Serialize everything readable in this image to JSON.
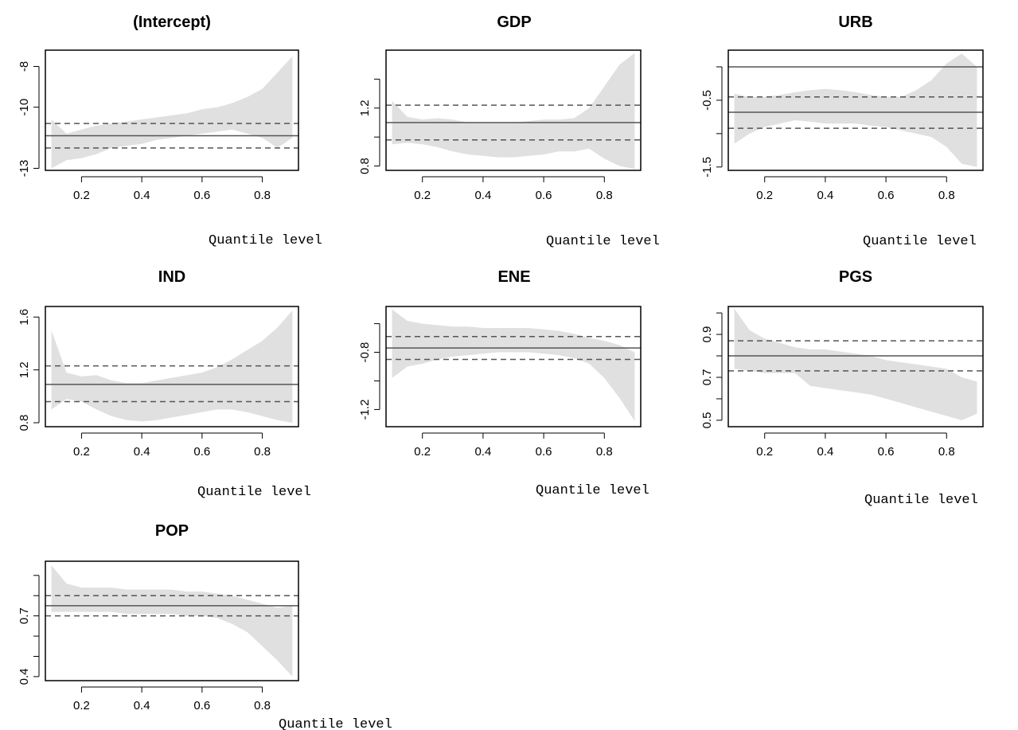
{
  "colors": {
    "band": "#e0e0e0",
    "line": "#555555",
    "frame": "#000000"
  },
  "chart_data": [
    {
      "type": "area",
      "title": "(Intercept)",
      "xlabel": "Quantile level",
      "xlim": [
        0.08,
        0.92
      ],
      "ylim": [
        -13.1,
        -7.2
      ],
      "xticks": [
        0.2,
        0.4,
        0.6,
        0.8
      ],
      "xtick_labels": [
        "0.2",
        "0.4",
        "0.6",
        "0.8"
      ],
      "yticks": [
        -13,
        -10,
        -8
      ],
      "ytick_labels": [
        "-13",
        "-10",
        "-8"
      ],
      "extra_yticks": [],
      "ols_estimate": -11.4,
      "ols_ci": [
        -12.0,
        -10.8
      ],
      "x": [
        0.1,
        0.15,
        0.2,
        0.25,
        0.3,
        0.35,
        0.4,
        0.45,
        0.5,
        0.55,
        0.6,
        0.65,
        0.7,
        0.75,
        0.8,
        0.85,
        0.9
      ],
      "band_upper": [
        -10.6,
        -11.3,
        -11.1,
        -10.9,
        -10.8,
        -10.7,
        -10.6,
        -10.5,
        -10.4,
        -10.3,
        -10.1,
        -10.0,
        -9.8,
        -9.5,
        -9.1,
        -8.3,
        -7.5
      ],
      "band_lower": [
        -13.0,
        -12.6,
        -12.5,
        -12.3,
        -12.0,
        -11.9,
        -11.8,
        -11.6,
        -11.5,
        -11.4,
        -11.3,
        -11.2,
        -11.1,
        -11.3,
        -11.5,
        -12.0,
        -11.5
      ]
    },
    {
      "type": "area",
      "title": "GDP",
      "xlabel": "Quantile level",
      "xlim": [
        0.08,
        0.92
      ],
      "ylim": [
        0.77,
        1.6
      ],
      "xticks": [
        0.2,
        0.4,
        0.6,
        0.8
      ],
      "xtick_labels": [
        "0.2",
        "0.4",
        "0.6",
        "0.8"
      ],
      "yticks": [
        0.8,
        1.2
      ],
      "ytick_labels": [
        "0.8",
        "1.2"
      ],
      "extra_yticks": [
        1.0,
        1.4
      ],
      "ols_estimate": 1.1,
      "ols_ci": [
        0.98,
        1.22
      ],
      "x": [
        0.1,
        0.15,
        0.2,
        0.25,
        0.3,
        0.35,
        0.4,
        0.45,
        0.5,
        0.55,
        0.6,
        0.65,
        0.7,
        0.75,
        0.8,
        0.85,
        0.9
      ],
      "band_upper": [
        1.25,
        1.14,
        1.12,
        1.13,
        1.12,
        1.1,
        1.1,
        1.1,
        1.1,
        1.11,
        1.12,
        1.12,
        1.13,
        1.2,
        1.35,
        1.5,
        1.58
      ],
      "band_lower": [
        0.95,
        0.96,
        0.95,
        0.93,
        0.9,
        0.88,
        0.87,
        0.86,
        0.86,
        0.87,
        0.88,
        0.9,
        0.9,
        0.92,
        0.85,
        0.8,
        0.78
      ]
    },
    {
      "type": "area",
      "title": "URB",
      "xlabel": "Quantile level",
      "xlim": [
        0.08,
        0.92
      ],
      "ylim": [
        -1.55,
        0.25
      ],
      "xticks": [
        0.2,
        0.4,
        0.6,
        0.8
      ],
      "xtick_labels": [
        "0.2",
        "0.4",
        "0.6",
        "0.8"
      ],
      "yticks": [
        -1.5,
        -0.5
      ],
      "ytick_labels": [
        "-1.5",
        "-0.5"
      ],
      "extra_yticks": [
        -1.0,
        0.0
      ],
      "ols_estimate": -0.68,
      "ols_ci": [
        -0.92,
        -0.45
      ],
      "x": [
        0.1,
        0.15,
        0.2,
        0.25,
        0.3,
        0.35,
        0.4,
        0.45,
        0.5,
        0.55,
        0.6,
        0.65,
        0.7,
        0.75,
        0.8,
        0.85,
        0.9
      ],
      "band_upper": [
        -0.4,
        -0.45,
        -0.45,
        -0.42,
        -0.38,
        -0.35,
        -0.33,
        -0.35,
        -0.38,
        -0.42,
        -0.45,
        -0.45,
        -0.35,
        -0.2,
        0.05,
        0.2,
        0.0
      ],
      "band_lower": [
        -1.15,
        -1.0,
        -0.9,
        -0.85,
        -0.8,
        -0.82,
        -0.85,
        -0.85,
        -0.85,
        -0.88,
        -0.9,
        -0.95,
        -1.0,
        -1.05,
        -1.2,
        -1.45,
        -1.5
      ]
    },
    {
      "type": "area",
      "title": "IND",
      "xlabel": "Quantile level",
      "xlim": [
        0.08,
        0.92
      ],
      "ylim": [
        0.77,
        1.68
      ],
      "xticks": [
        0.2,
        0.4,
        0.6,
        0.8
      ],
      "xtick_labels": [
        "0.2",
        "0.4",
        "0.6",
        "0.8"
      ],
      "yticks": [
        0.8,
        1.2,
        1.6
      ],
      "ytick_labels": [
        "0.8",
        "1.2",
        "1.6"
      ],
      "extra_yticks": [],
      "ols_estimate": 1.09,
      "ols_ci": [
        0.96,
        1.23
      ],
      "x": [
        0.1,
        0.15,
        0.2,
        0.25,
        0.3,
        0.35,
        0.4,
        0.45,
        0.5,
        0.55,
        0.6,
        0.65,
        0.7,
        0.75,
        0.8,
        0.85,
        0.9
      ],
      "band_upper": [
        1.5,
        1.18,
        1.15,
        1.16,
        1.12,
        1.1,
        1.1,
        1.12,
        1.14,
        1.16,
        1.18,
        1.22,
        1.28,
        1.35,
        1.42,
        1.52,
        1.65
      ],
      "band_lower": [
        0.9,
        0.98,
        0.96,
        0.9,
        0.85,
        0.82,
        0.81,
        0.82,
        0.84,
        0.86,
        0.88,
        0.9,
        0.9,
        0.88,
        0.85,
        0.82,
        0.8
      ]
    },
    {
      "type": "area",
      "title": "ENE",
      "xlabel": "Quantile level",
      "xlim": [
        0.08,
        0.92
      ],
      "ylim": [
        -1.32,
        -0.48
      ],
      "xticks": [
        0.2,
        0.4,
        0.6,
        0.8
      ],
      "xtick_labels": [
        "0.2",
        "0.4",
        "0.6",
        "0.8"
      ],
      "yticks": [
        -1.2,
        -0.8
      ],
      "ytick_labels": [
        "-1.2",
        "-0.8"
      ],
      "extra_yticks": [
        -1.0,
        -0.6
      ],
      "ols_estimate": -0.77,
      "ols_ci": [
        -0.85,
        -0.69
      ],
      "x": [
        0.1,
        0.15,
        0.2,
        0.25,
        0.3,
        0.35,
        0.4,
        0.45,
        0.5,
        0.55,
        0.6,
        0.65,
        0.7,
        0.75,
        0.8,
        0.85,
        0.9
      ],
      "band_upper": [
        -0.5,
        -0.58,
        -0.6,
        -0.61,
        -0.62,
        -0.62,
        -0.63,
        -0.63,
        -0.63,
        -0.63,
        -0.64,
        -0.65,
        -0.67,
        -0.7,
        -0.72,
        -0.75,
        -0.8
      ],
      "band_lower": [
        -0.98,
        -0.9,
        -0.88,
        -0.85,
        -0.83,
        -0.82,
        -0.81,
        -0.8,
        -0.8,
        -0.8,
        -0.81,
        -0.82,
        -0.84,
        -0.88,
        -0.98,
        -1.12,
        -1.28
      ]
    },
    {
      "type": "area",
      "title": "PGS",
      "xlabel": "Quantile level",
      "xlim": [
        0.08,
        0.92
      ],
      "ylim": [
        0.47,
        1.03
      ],
      "xticks": [
        0.2,
        0.4,
        0.6,
        0.8
      ],
      "xtick_labels": [
        "0.2",
        "0.4",
        "0.6",
        "0.8"
      ],
      "yticks": [
        0.5,
        0.7,
        0.9
      ],
      "ytick_labels": [
        "0.5",
        "0.7",
        "0.9"
      ],
      "extra_yticks": [
        0.6,
        0.8,
        1.0
      ],
      "ols_estimate": 0.8,
      "ols_ci": [
        0.73,
        0.87
      ],
      "x": [
        0.1,
        0.15,
        0.2,
        0.25,
        0.3,
        0.35,
        0.4,
        0.45,
        0.5,
        0.55,
        0.6,
        0.65,
        0.7,
        0.75,
        0.8,
        0.85,
        0.9
      ],
      "band_upper": [
        1.02,
        0.92,
        0.88,
        0.86,
        0.84,
        0.83,
        0.83,
        0.82,
        0.81,
        0.8,
        0.78,
        0.77,
        0.76,
        0.75,
        0.74,
        0.7,
        0.68
      ],
      "band_lower": [
        0.74,
        0.73,
        0.72,
        0.72,
        0.72,
        0.66,
        0.65,
        0.64,
        0.63,
        0.62,
        0.6,
        0.58,
        0.56,
        0.54,
        0.52,
        0.5,
        0.53
      ]
    },
    {
      "type": "area",
      "title": "POP",
      "xlabel": "Quantile level",
      "xlim": [
        0.08,
        0.92
      ],
      "ylim": [
        0.38,
        0.97
      ],
      "xticks": [
        0.2,
        0.4,
        0.6,
        0.8
      ],
      "xtick_labels": [
        "0.2",
        "0.4",
        "0.6",
        "0.8"
      ],
      "yticks": [
        0.4,
        0.7
      ],
      "ytick_labels": [
        "0.4",
        "0.7"
      ],
      "extra_yticks": [
        0.5,
        0.6,
        0.8,
        0.9
      ],
      "ols_estimate": 0.75,
      "ols_ci": [
        0.7,
        0.8
      ],
      "x": [
        0.1,
        0.15,
        0.2,
        0.25,
        0.3,
        0.35,
        0.4,
        0.45,
        0.5,
        0.55,
        0.6,
        0.65,
        0.7,
        0.75,
        0.8,
        0.85,
        0.9
      ],
      "band_upper": [
        0.95,
        0.86,
        0.84,
        0.84,
        0.84,
        0.83,
        0.83,
        0.83,
        0.83,
        0.82,
        0.82,
        0.81,
        0.8,
        0.78,
        0.76,
        0.74,
        0.75
      ],
      "band_lower": [
        0.72,
        0.72,
        0.72,
        0.72,
        0.72,
        0.71,
        0.71,
        0.71,
        0.71,
        0.7,
        0.7,
        0.69,
        0.66,
        0.62,
        0.55,
        0.48,
        0.4
      ]
    }
  ]
}
